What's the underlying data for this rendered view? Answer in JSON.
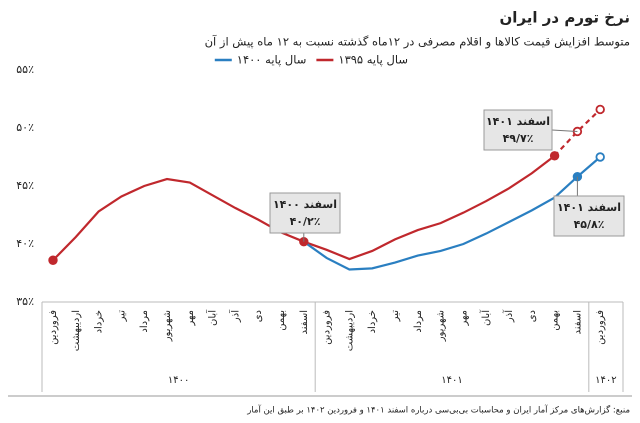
{
  "chart_data": {
    "type": "line",
    "title": "نرخ تورم در ایران",
    "subtitle": "متوسط افزایش قیمت کالاها و اقلام مصرفی در ۱۲ماه گذشته نسبت به ۱۲ ماه پیش از آن",
    "categories": [
      "فروردین",
      "اردیبهشت",
      "خرداد",
      "تیر",
      "مرداد",
      "شهریور",
      "مهر",
      "آبان",
      "آذر",
      "دی",
      "بهمن",
      "اسفند",
      "فروردین",
      "اردیبهشت",
      "خرداد",
      "تیر",
      "مرداد",
      "شهریور",
      "مهر",
      "آبان",
      "آذر",
      "دی",
      "بهمن",
      "اسفند",
      "فروردین"
    ],
    "x_groups": [
      "۱۴۰۰",
      "۱۴۰۱",
      "۱۴۰۲"
    ],
    "series": [
      {
        "name": "سال پایه ۱۳۹۵",
        "color": "#c0282d",
        "dashed_from_index": 22,
        "values": [
          38.6,
          40.6,
          42.8,
          44.1,
          45.0,
          45.6,
          45.3,
          44.2,
          43.1,
          42.1,
          41.0,
          40.2,
          39.5,
          38.7,
          39.4,
          40.4,
          41.2,
          41.8,
          42.7,
          43.7,
          44.8,
          46.1,
          47.6,
          49.7,
          51.6
        ]
      },
      {
        "name": "سال پایه ۱۴۰۰",
        "color": "#2a7fc1",
        "values": [
          null,
          null,
          null,
          null,
          null,
          null,
          null,
          null,
          null,
          null,
          null,
          40.2,
          38.8,
          37.8,
          37.9,
          38.4,
          39.0,
          39.4,
          40.0,
          40.9,
          41.9,
          42.9,
          44.0,
          45.8,
          47.5
        ]
      }
    ],
    "ylim": [
      35,
      55
    ],
    "yticks": [
      {
        "value": 35,
        "label": "۳۵٪"
      },
      {
        "value": 40,
        "label": "۴۰٪"
      },
      {
        "value": 45,
        "label": "۴۵٪"
      },
      {
        "value": 50,
        "label": "۵۰٪"
      },
      {
        "value": 55,
        "label": "۵۵٪"
      }
    ],
    "grid": false,
    "annotations": [
      {
        "title": "اسفند ۱۴۰۰",
        "label": "۴۰/۲٪"
      },
      {
        "title": "اسفند ۱۴۰۱",
        "label": "۴۹/۷٪"
      },
      {
        "title": "اسفند ۱۴۰۱",
        "label": "۴۵/۸٪"
      }
    ],
    "source": "منبع: گزارش‌های مرکز آمار ایران و محاسبات بی‌بی‌سی درباره اسفند ۱۴۰۱ و فروردین ۱۴۰۲ بر طبق این آمار"
  }
}
